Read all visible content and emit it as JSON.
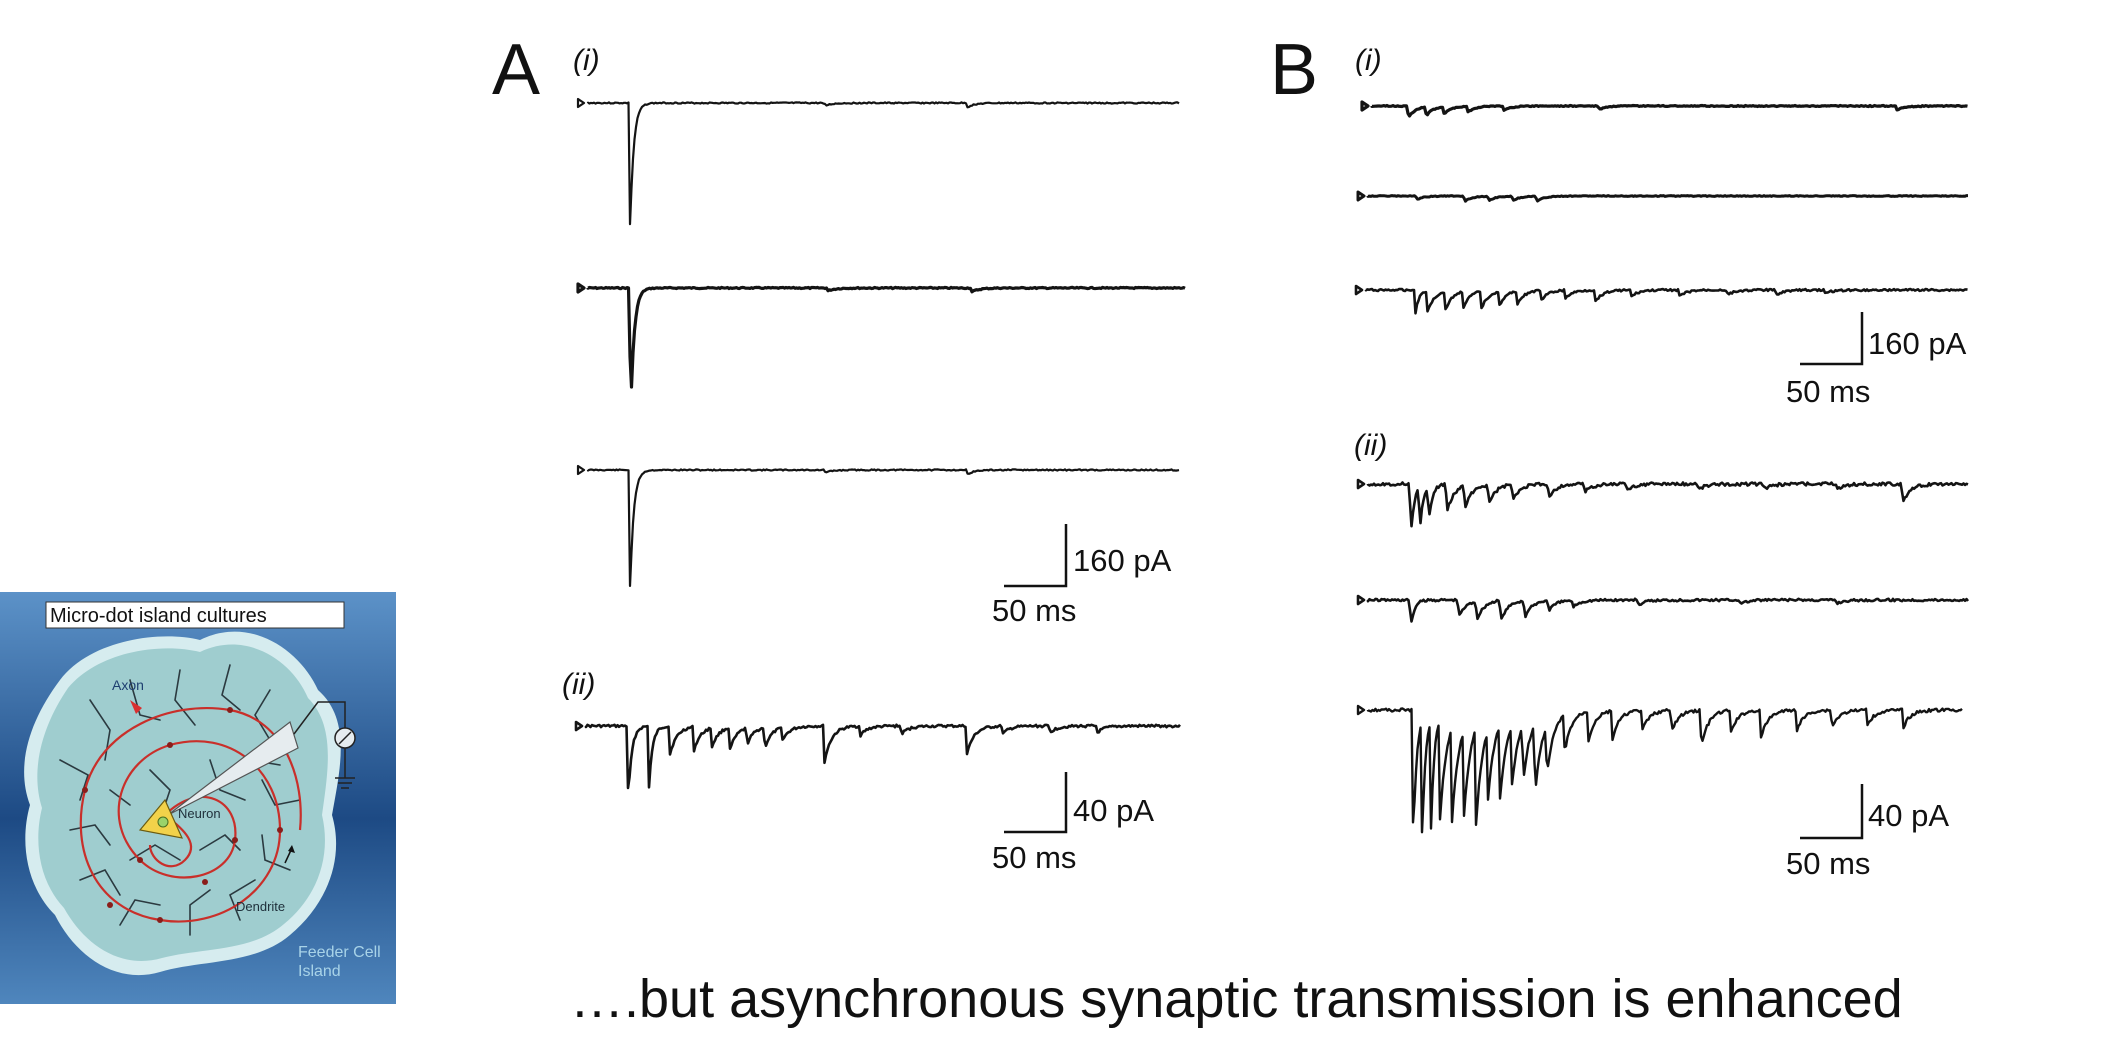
{
  "inset": {
    "title": "Micro-dot island cultures",
    "labels": {
      "axon": "Axon",
      "neuron": "Neuron",
      "dendrite": "Dendrite",
      "feeder_line1": "Feeder Cell",
      "feeder_line2": "Island"
    },
    "colors": {
      "bg_top": "#5a8fc5",
      "bg_mid": "#1e4a83",
      "island": "#9fcdcf",
      "island_edge": "#d7edf0",
      "axon": "#c92f2a",
      "neuron": "#f2d24a",
      "dendrite": "#2b3a40",
      "pipette": "#e6ecef"
    }
  },
  "panels": {
    "A": {
      "letter": "A",
      "sub_i": "(i)",
      "sub_ii": "(ii)",
      "scale_i": {
        "y": "160 pA",
        "x": "50 ms"
      },
      "scale_ii": {
        "y": "40 pA",
        "x": "50 ms"
      }
    },
    "B": {
      "letter": "B",
      "sub_i": "(i)",
      "sub_ii": "(ii)",
      "scale_i": {
        "y": "160 pA",
        "x": "50 ms"
      },
      "scale_ii": {
        "y": "40 pA",
        "x": "50 ms"
      }
    }
  },
  "caption": "….but asynchronous synaptic transmission is enhanced"
}
